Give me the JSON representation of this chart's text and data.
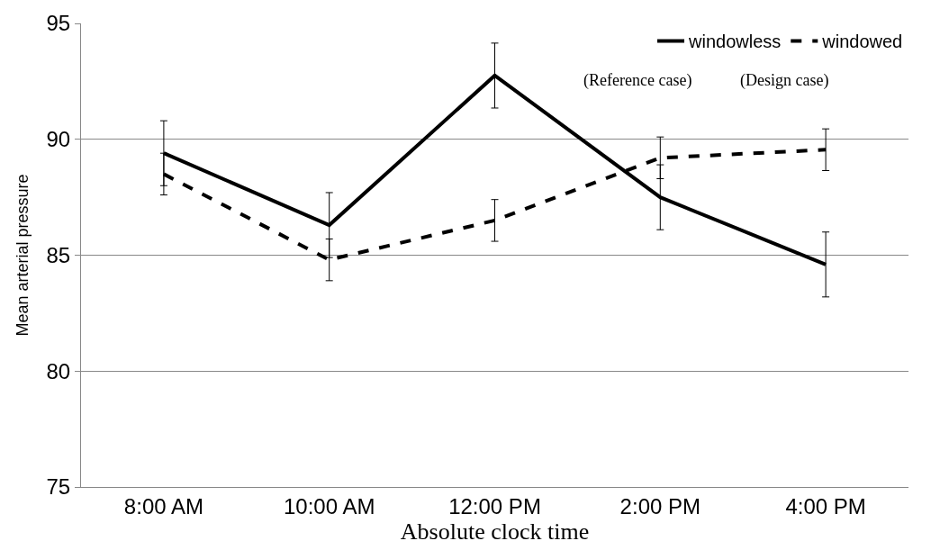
{
  "chart_data": {
    "type": "line",
    "xlabel": "Absolute clock time",
    "ylabel": "Mean arterial pressure",
    "categories": [
      "8:00 AM",
      "10:00 AM",
      "12:00 PM",
      "2:00 PM",
      "4:00 PM"
    ],
    "series": [
      {
        "name": "windowless",
        "color": "#000000",
        "line_style": "solid",
        "values": [
          89.4,
          86.3,
          92.75,
          87.5,
          84.6
        ],
        "errors": [
          1.4,
          1.4,
          1.4,
          1.4,
          1.4
        ]
      },
      {
        "name": "windowed",
        "color": "#000000",
        "line_style": "dashed",
        "values": [
          88.5,
          84.8,
          86.5,
          89.2,
          89.55
        ],
        "errors": [
          0.9,
          0.9,
          0.9,
          0.9,
          0.9
        ]
      }
    ],
    "annotations": [
      "(Reference case)",
      "(Design case)"
    ],
    "ylim": [
      75,
      95
    ],
    "yticks": [
      75,
      80,
      85,
      90,
      95
    ],
    "grid": "y",
    "legend": "top right",
    "marker": "none"
  }
}
